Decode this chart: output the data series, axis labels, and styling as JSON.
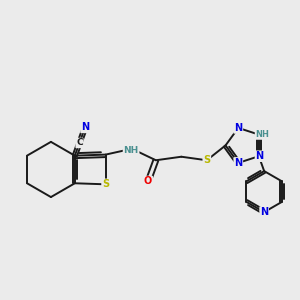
{
  "bg_color": "#ebebeb",
  "bond_color": "#1a1a1a",
  "atom_colors": {
    "S": "#b8b800",
    "N": "#0000e0",
    "O": "#ee0000",
    "C": "#1a1a1a",
    "H": "#4a9090"
  },
  "figsize": [
    3.0,
    3.0
  ],
  "dpi": 100
}
